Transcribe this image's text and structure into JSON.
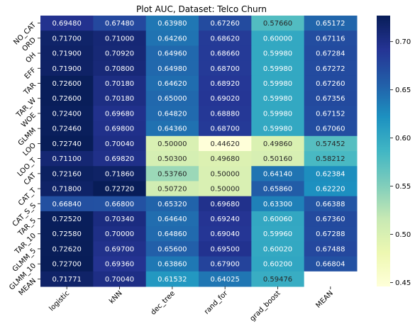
{
  "chart_data": {
    "type": "heatmap",
    "title": "Plot AUC, Dataset: Telco Churn",
    "columns": [
      "logistic",
      "kNN",
      "dec_tree",
      "rand_for",
      "grad_boost",
      "MEAN"
    ],
    "rows": [
      "NO_CAT",
      "ORD",
      "OH",
      "EFF",
      "TAR",
      "TAR_W",
      "WOE",
      "GLMM",
      "LOO",
      "LOO_T",
      "CAT",
      "CAT_T",
      "CAT_S_S",
      "TAR_5",
      "TAR_10",
      "GLMM_5",
      "GLMM_10",
      "MEAN"
    ],
    "values": [
      [
        0.6948,
        0.6748,
        0.6398,
        0.6726,
        0.5766,
        0.65172
      ],
      [
        0.717,
        0.71,
        0.6426,
        0.6862,
        0.6,
        0.67116
      ],
      [
        0.719,
        0.7092,
        0.6496,
        0.6866,
        0.5998,
        0.67284
      ],
      [
        0.719,
        0.708,
        0.6498,
        0.687,
        0.5998,
        0.67272
      ],
      [
        0.726,
        0.7018,
        0.6462,
        0.6892,
        0.5998,
        0.6726
      ],
      [
        0.726,
        0.7018,
        0.65,
        0.6902,
        0.5998,
        0.67356
      ],
      [
        0.724,
        0.6968,
        0.6482,
        0.6888,
        0.5998,
        0.67152
      ],
      [
        0.7246,
        0.698,
        0.6436,
        0.687,
        0.5998,
        0.6706
      ],
      [
        0.7274,
        0.7004,
        0.5,
        0.4462,
        0.4986,
        0.57452
      ],
      [
        0.711,
        0.6982,
        0.503,
        0.4968,
        0.5016,
        0.58212
      ],
      [
        0.7216,
        0.7186,
        0.5376,
        0.5,
        0.6414,
        0.62384
      ],
      [
        0.718,
        0.7272,
        0.5072,
        0.5,
        0.6586,
        0.6222
      ],
      [
        0.6684,
        0.668,
        0.6532,
        0.6968,
        0.633,
        0.66388
      ],
      [
        0.7252,
        0.7034,
        0.6464,
        0.6924,
        0.6006,
        0.6736
      ],
      [
        0.7258,
        0.7,
        0.6486,
        0.6904,
        0.5996,
        0.67288
      ],
      [
        0.7262,
        0.697,
        0.656,
        0.695,
        0.6002,
        0.67488
      ],
      [
        0.727,
        0.6936,
        0.6386,
        0.679,
        0.602,
        0.66804
      ],
      [
        0.71771,
        0.7004,
        0.61532,
        0.64025,
        0.59476,
        null
      ]
    ],
    "labels": [
      [
        "0.69480",
        "0.67480",
        "0.63980",
        "0.67260",
        "0.57660",
        "0.65172"
      ],
      [
        "0.71700",
        "0.71000",
        "0.64260",
        "0.68620",
        "0.60000",
        "0.67116"
      ],
      [
        "0.71900",
        "0.70920",
        "0.64960",
        "0.68660",
        "0.59980",
        "0.67284"
      ],
      [
        "0.71900",
        "0.70800",
        "0.64980",
        "0.68700",
        "0.59980",
        "0.67272"
      ],
      [
        "0.72600",
        "0.70180",
        "0.64620",
        "0.68920",
        "0.59980",
        "0.67260"
      ],
      [
        "0.72600",
        "0.70180",
        "0.65000",
        "0.69020",
        "0.59980",
        "0.67356"
      ],
      [
        "0.72400",
        "0.69680",
        "0.64820",
        "0.68880",
        "0.59980",
        "0.67152"
      ],
      [
        "0.72460",
        "0.69800",
        "0.64360",
        "0.68700",
        "0.59980",
        "0.67060"
      ],
      [
        "0.72740",
        "0.70040",
        "0.50000",
        "0.44620",
        "0.49860",
        "0.57452"
      ],
      [
        "0.71100",
        "0.69820",
        "0.50300",
        "0.49680",
        "0.50160",
        "0.58212"
      ],
      [
        "0.72160",
        "0.71860",
        "0.53760",
        "0.50000",
        "0.64140",
        "0.62384"
      ],
      [
        "0.71800",
        "0.72720",
        "0.50720",
        "0.50000",
        "0.65860",
        "0.62220"
      ],
      [
        "0.66840",
        "0.66800",
        "0.65320",
        "0.69680",
        "0.63300",
        "0.66388"
      ],
      [
        "0.72520",
        "0.70340",
        "0.64640",
        "0.69240",
        "0.60060",
        "0.67360"
      ],
      [
        "0.72580",
        "0.70000",
        "0.64860",
        "0.69040",
        "0.59960",
        "0.67288"
      ],
      [
        "0.72620",
        "0.69700",
        "0.65600",
        "0.69500",
        "0.60020",
        "0.67488"
      ],
      [
        "0.72700",
        "0.69360",
        "0.63860",
        "0.67900",
        "0.60200",
        "0.66804"
      ],
      [
        "0.71771",
        "0.70040",
        "0.61532",
        "0.64025",
        "0.59476",
        ""
      ]
    ],
    "colormap": "YlGnBu",
    "colorbar": {
      "vmin": 0.446,
      "vmax": 0.727,
      "ticks": [
        0.45,
        0.5,
        0.55,
        0.6,
        0.65,
        0.7
      ],
      "tick_labels": [
        "0.45",
        "0.50",
        "0.55",
        "0.60",
        "0.65",
        "0.70"
      ]
    },
    "colormap_stops": [
      "#ffffd9",
      "#edf8b1",
      "#c7e9b4",
      "#7fcdbb",
      "#41b6c4",
      "#1d91c0",
      "#225ea8",
      "#253494",
      "#081d58"
    ],
    "missing_cell_color": "#ffffff"
  }
}
